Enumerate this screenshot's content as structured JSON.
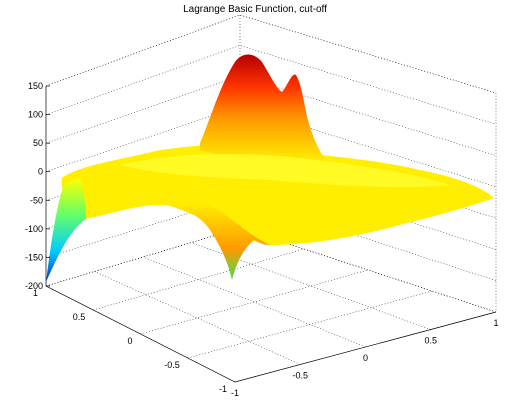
{
  "chart_data": {
    "type": "surface",
    "title": "Lagrange Basic Function, cut-off",
    "xlabel": "",
    "ylabel": "",
    "zlabel": "",
    "grid": true,
    "colormap": "jet",
    "x_axis": {
      "ticks": [
        "-1",
        "-0.5",
        "0",
        "0.5",
        "1"
      ],
      "lim": [
        -1,
        1
      ]
    },
    "y_axis": {
      "ticks": [
        "1",
        "0.5",
        "0",
        "-0.5",
        "-1"
      ],
      "lim": [
        -1,
        1
      ]
    },
    "z_axis": {
      "ticks": [
        "150",
        "100",
        "50",
        "0",
        "-50",
        "-100",
        "-150",
        "-200"
      ],
      "lim": [
        -200,
        150
      ]
    },
    "features": [
      {
        "kind": "peak",
        "x": 0.1,
        "y": 0.8,
        "z": 140
      },
      {
        "kind": "ridge",
        "x": 0.3,
        "y": 0.75,
        "z": 90
      },
      {
        "kind": "trough",
        "x": -1.0,
        "y": 1.0,
        "z": -200
      },
      {
        "kind": "dip",
        "x": -0.6,
        "y": -0.2,
        "z": -90
      },
      {
        "kind": "plateau",
        "z": 0
      }
    ]
  }
}
